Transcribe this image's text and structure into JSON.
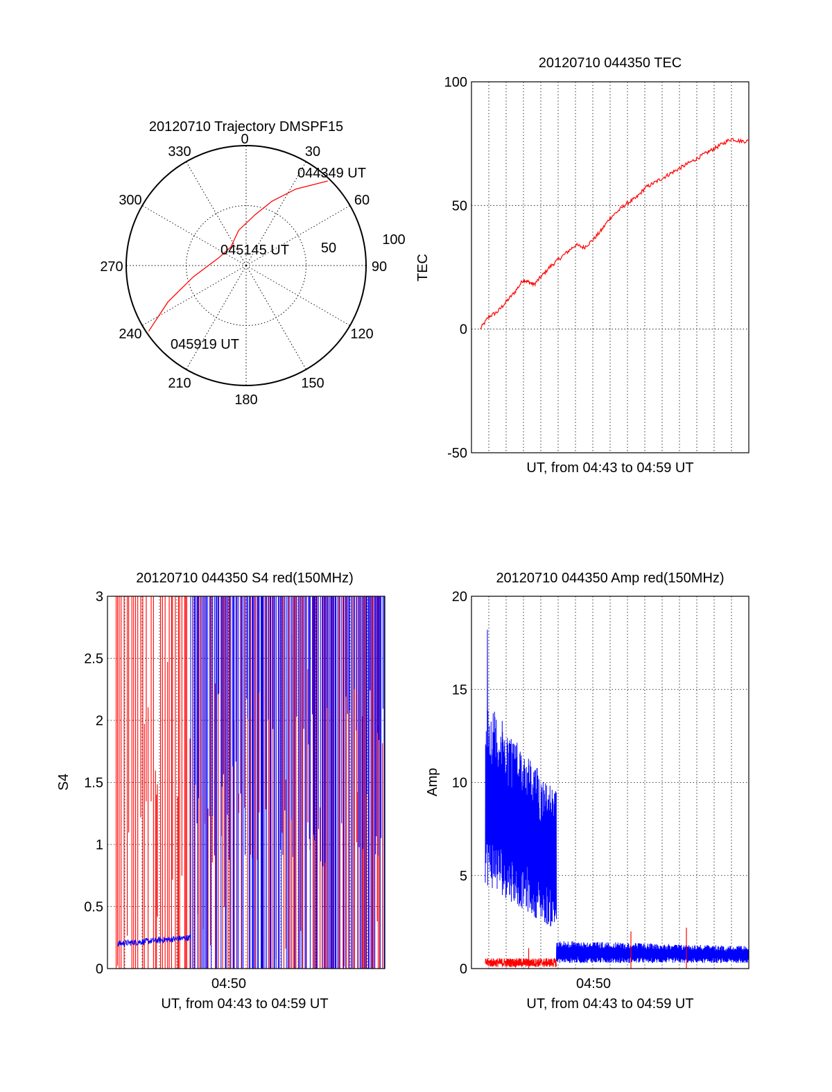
{
  "colors": {
    "red_channel": "#ff0000",
    "blue_channel": "#0000ff",
    "axis": "#000000",
    "grid": "#000000"
  },
  "chart_data": [
    {
      "id": "trajectory",
      "type": "polar",
      "title": "20120710 Trajectory DMSPF15",
      "azimuth_ticks": [
        "0",
        "30",
        "60",
        "90",
        "120",
        "150",
        "180",
        "210",
        "240",
        "270",
        "300",
        "330"
      ],
      "radial_labels": [
        "50",
        "100"
      ],
      "radial_range": [
        0,
        100
      ],
      "grid": true,
      "annotations": [
        {
          "text": "044349 UT",
          "az": 45,
          "r": 98
        },
        {
          "text": "045145 UT",
          "az": 355,
          "r": 12
        },
        {
          "text": "045919 UT",
          "az": 236,
          "r": 98
        }
      ],
      "trajectory": {
        "color": "red",
        "points": [
          [
            44,
            98
          ],
          [
            33,
            76
          ],
          [
            22,
            58
          ],
          [
            10,
            43
          ],
          [
            348,
            30
          ],
          [
            320,
            20
          ],
          [
            285,
            24
          ],
          [
            258,
            45
          ],
          [
            245,
            72
          ],
          [
            236,
            98
          ]
        ]
      }
    },
    {
      "id": "tec",
      "type": "line",
      "title": "20120710 044350 TEC",
      "xlabel": "UT, from 04:43 to 04:59 UT",
      "ylabel": "TEC",
      "ylim": [
        -50,
        100
      ],
      "yticks": [
        "-50",
        "0",
        "50",
        "100"
      ],
      "xlim": [
        0,
        16
      ],
      "grid": true,
      "series": [
        {
          "color": "red",
          "x": [
            0.5,
            1.0,
            1.5,
            2.0,
            2.5,
            3.0,
            3.3,
            3.6,
            4.0,
            4.5,
            5.0,
            5.5,
            6.0,
            6.5,
            7.0,
            7.5,
            8.0,
            8.5,
            9.0,
            9.5,
            10.0,
            10.5,
            11.0,
            11.5,
            12.0,
            12.5,
            13.0,
            13.5,
            14.0,
            14.5,
            15.0,
            15.5,
            16.0
          ],
          "values": [
            0,
            5,
            7,
            11,
            15,
            20,
            19,
            18,
            21,
            25,
            28,
            31,
            34,
            33,
            36,
            40,
            45,
            48,
            51,
            53,
            57,
            59,
            61,
            63,
            65,
            67,
            69,
            71,
            73,
            75,
            77,
            76,
            76
          ]
        }
      ]
    },
    {
      "id": "s4",
      "type": "line",
      "title": "20120710 044350 S4 red(150MHz)",
      "xlabel": "UT, from 04:43 to 04:59 UT",
      "ylabel": "S4",
      "ylim": [
        0,
        3
      ],
      "yticks": [
        "0",
        "0.5",
        "1",
        "1.5",
        "2",
        "2.5",
        "3"
      ],
      "xlim": [
        0,
        16
      ],
      "xticks": [
        "04:50"
      ],
      "grid": true,
      "series": [
        {
          "color": "red",
          "description": "saturated spikes between 0 and 3",
          "x_start": 0.5,
          "x_end": 16,
          "min": 0,
          "max": 3
        },
        {
          "color": "blue",
          "x_start": 0.6,
          "x_end": 4.8,
          "level_start": 0.2,
          "level_end": 0.25,
          "x_spikes_start": 4.8,
          "x_spikes_end": 16
        }
      ]
    },
    {
      "id": "amp",
      "type": "line",
      "title": "20120710 044350 Amp red(150MHz)",
      "xlabel": "UT, from 04:43 to 04:59 UT",
      "ylabel": "Amp",
      "ylim": [
        0,
        20
      ],
      "yticks": [
        "0",
        "5",
        "10",
        "15",
        "20"
      ],
      "xlim": [
        0,
        16
      ],
      "xticks": [
        "04:50"
      ],
      "grid": true,
      "series": [
        {
          "color": "blue",
          "segments": [
            {
              "x_start": 0.8,
              "x_end": 4.9,
              "low_start": 4.5,
              "low_end": 2.0,
              "high_start": 14.5,
              "high_end": 9.5,
              "peak": 18.2
            },
            {
              "x_start": 4.9,
              "x_end": 16,
              "low_start": 0.3,
              "low_end": 0.3,
              "high_start": 1.5,
              "high_end": 1.2
            }
          ]
        },
        {
          "color": "red",
          "x_start": 0.8,
          "x_end": 4.9,
          "level": 0.4,
          "spikes": [
            [
              3.3,
              1.1
            ],
            [
              9.2,
              2.0
            ],
            [
              12.4,
              2.2
            ]
          ]
        }
      ]
    }
  ]
}
